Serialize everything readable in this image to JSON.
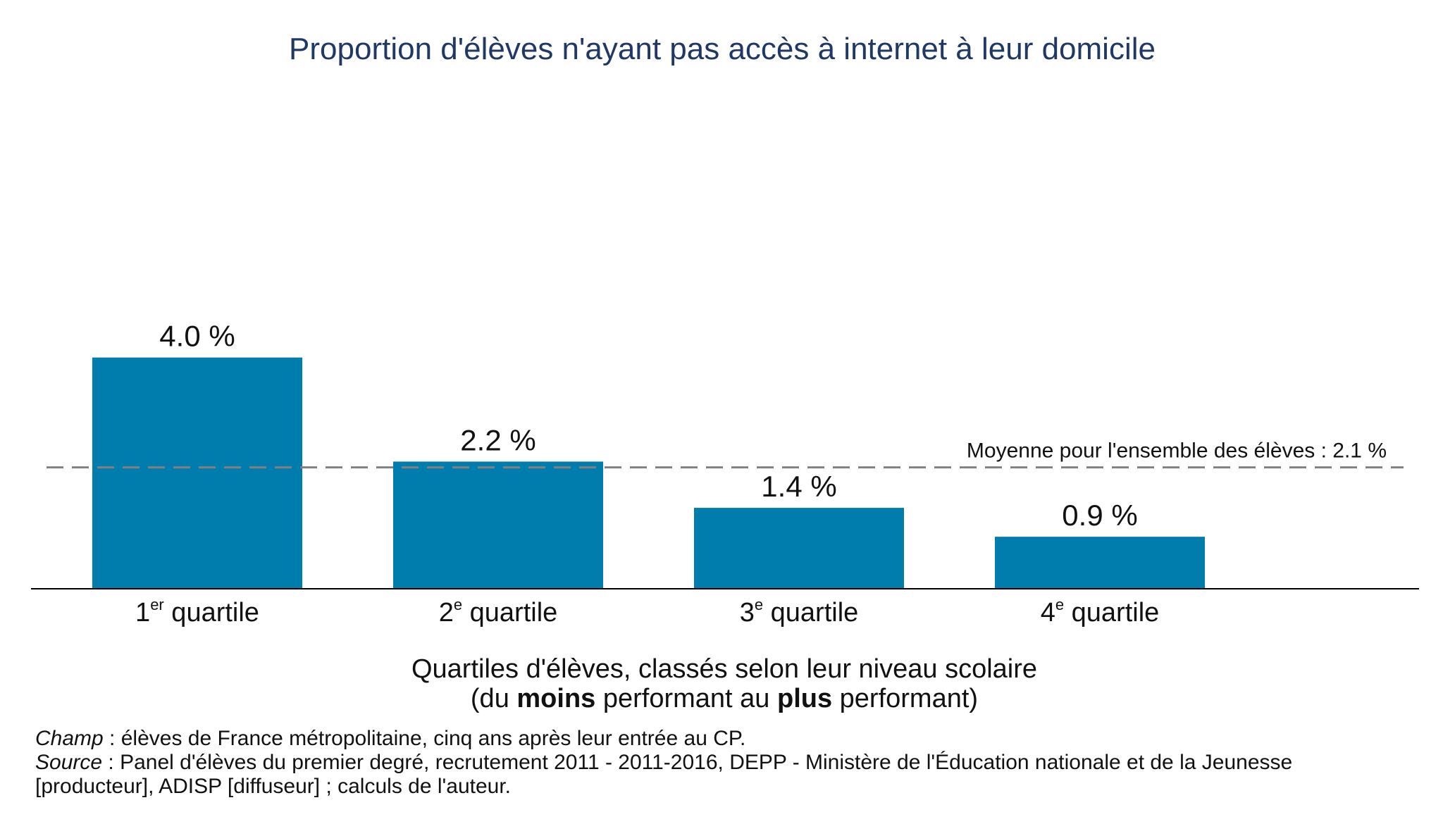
{
  "chart_data": {
    "type": "bar",
    "title": "Proportion d'élèves n'ayant pas accès à internet à leur domicile",
    "categories": [
      {
        "number": "1",
        "suffix": "er",
        "word": "quartile"
      },
      {
        "number": "2",
        "suffix": "e",
        "word": "quartile"
      },
      {
        "number": "3",
        "suffix": "e",
        "word": "quartile"
      },
      {
        "number": "4",
        "suffix": "e",
        "word": "quartile"
      }
    ],
    "values": [
      4.0,
      2.2,
      1.4,
      0.9
    ],
    "value_labels": [
      "4.0 %",
      "2.2 %",
      "1.4 %",
      "0.9 %"
    ],
    "average": {
      "value": 2.1,
      "label": "Moyenne pour l'ensemble des élèves : 2.1 %"
    },
    "xlabel": {
      "line1": "Quartiles d'élèves, classés selon leur niveau scolaire",
      "line2": {
        "pre": "(du ",
        "bold1": "moins",
        "mid": " performant au ",
        "bold2": "plus",
        "post": " performant)"
      }
    },
    "ylim": [
      0,
      8.6
    ],
    "grid": false,
    "colors": {
      "bar": "#007DAC",
      "title": "#1F3864",
      "average_line": "#808080",
      "axis": "#000000"
    }
  },
  "notes": {
    "champ": {
      "label": "Champ",
      "text": " : élèves de France métropolitaine, cinq ans après leur entrée au CP."
    },
    "source": {
      "label": "Source",
      "text": " : Panel d'élèves du premier degré, recrutement 2011 - 2011-2016, DEPP - Ministère de l'Éducation nationale et de la Jeunesse",
      "text2": "[producteur], ADISP [diffuseur] ; calculs de l'auteur."
    }
  }
}
